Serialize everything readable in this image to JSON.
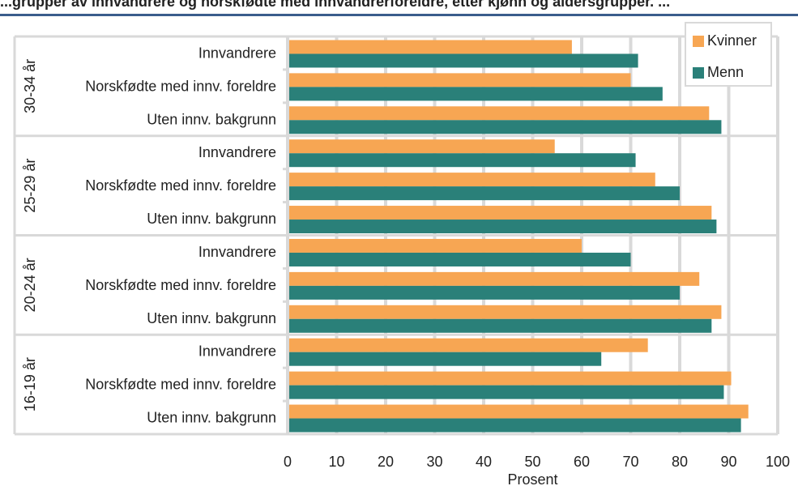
{
  "header": {
    "title": "...grupper av innvandrere og norskfødte med innvandrerforeldre, etter kjønn og aldersgrupper. ..."
  },
  "colors": {
    "kvinner": "#f7a653",
    "menn": "#2a8079",
    "grid": "#d9d9d9"
  },
  "chart_data": {
    "type": "bar",
    "orientation": "horizontal",
    "xlabel": "Prosent",
    "xlim": [
      0,
      100
    ],
    "xticks": [
      0,
      10,
      20,
      30,
      40,
      50,
      60,
      70,
      80,
      90,
      100
    ],
    "grid": true,
    "legend_position": "top-right",
    "groups": [
      {
        "label": "30-34 år",
        "categories": [
          "Innvandrere",
          "Norskfødte med innv. foreldre",
          "Uten innv. bakgrunn"
        ]
      },
      {
        "label": "25-29 år",
        "categories": [
          "Innvandrere",
          "Norskfødte med innv. foreldre",
          "Uten innv. bakgrunn"
        ]
      },
      {
        "label": "20-24 år",
        "categories": [
          "Innvandrere",
          "Norskfødte med innv. foreldre",
          "Uten innv. bakgrunn"
        ]
      },
      {
        "label": "16-19 år",
        "categories": [
          "Innvandrere",
          "Norskfødte med innv. foreldre",
          "Uten innv. bakgrunn"
        ]
      }
    ],
    "series": [
      {
        "name": "Kvinner",
        "color": "#f7a653",
        "values": [
          58,
          70,
          86,
          54.5,
          75,
          86.5,
          60,
          84,
          88.5,
          73.5,
          90.5,
          94
        ]
      },
      {
        "name": "Menn",
        "color": "#2a8079",
        "values": [
          71.5,
          76.5,
          88.5,
          71,
          80,
          87.5,
          70,
          80,
          86.5,
          64,
          89,
          92.5
        ]
      }
    ]
  }
}
